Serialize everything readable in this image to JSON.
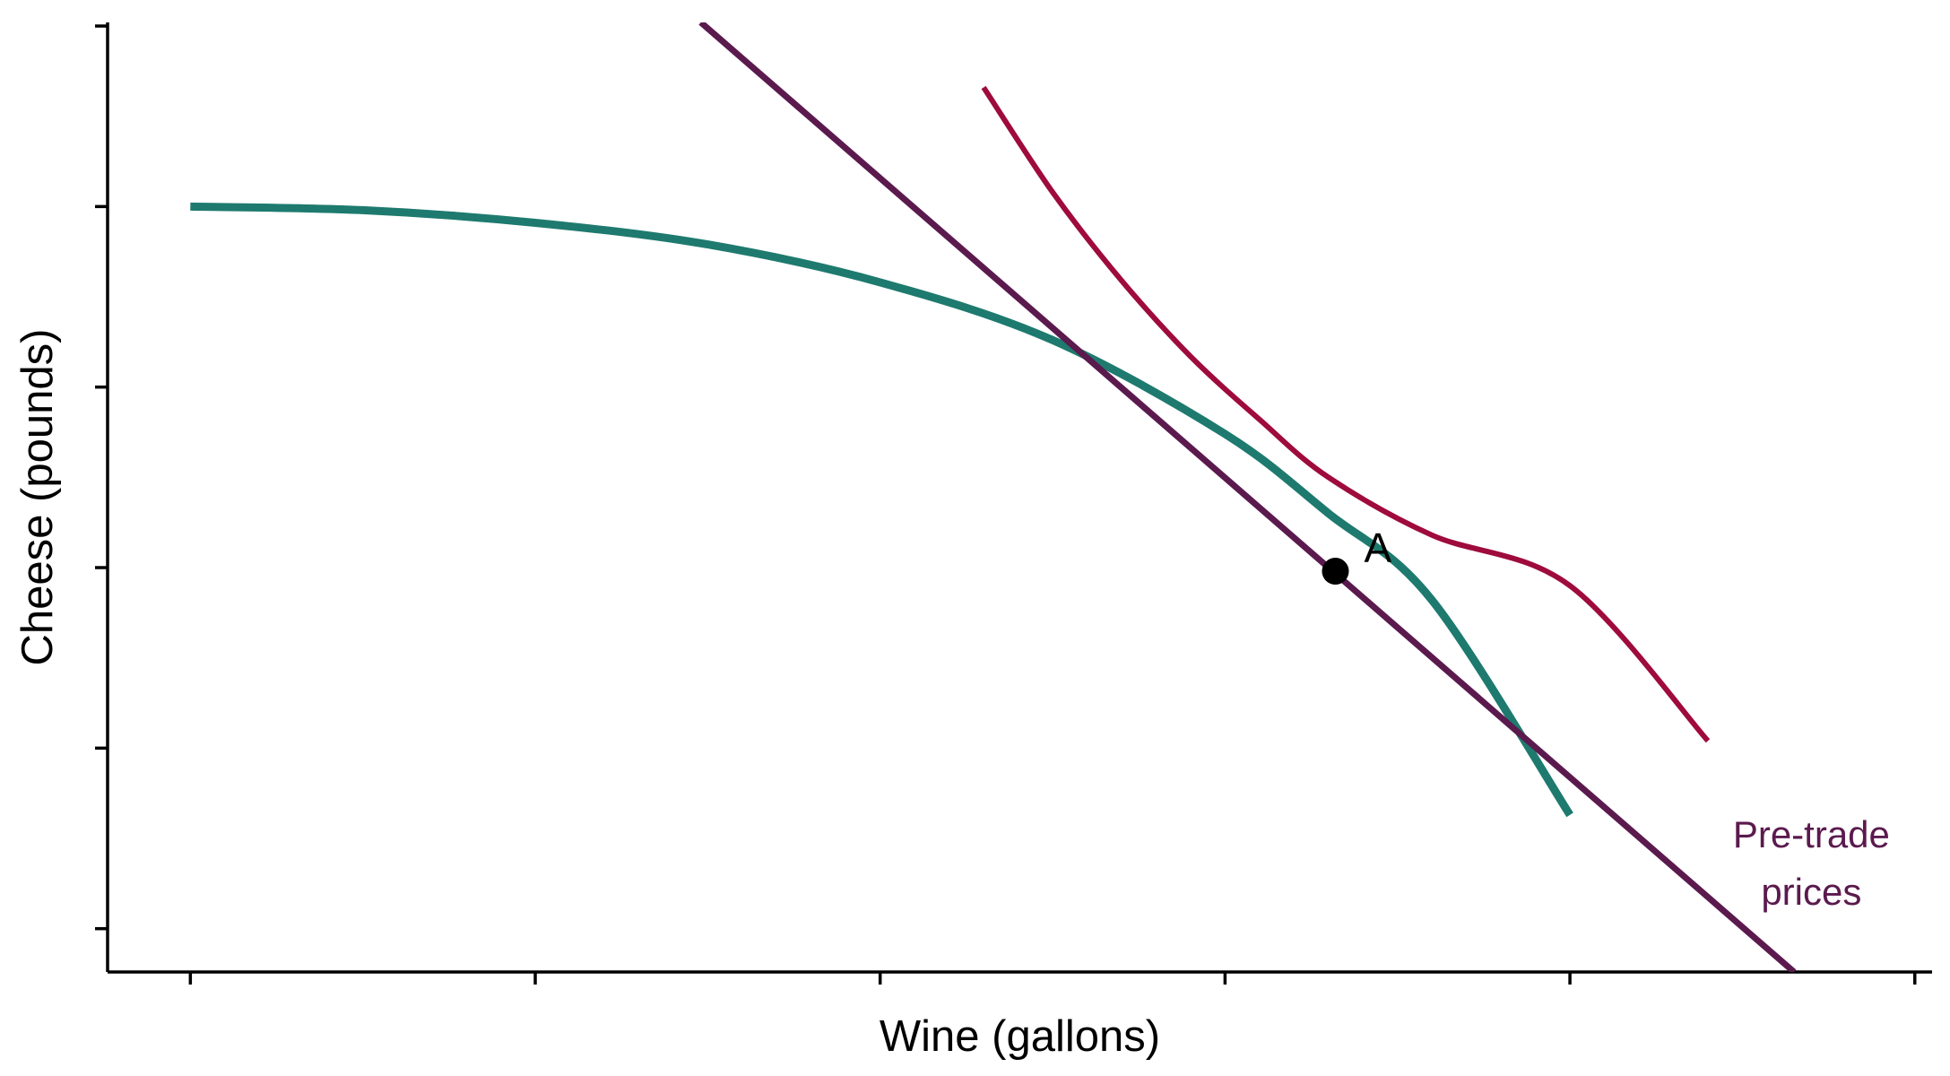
{
  "chart_data": {
    "type": "line",
    "title": "",
    "xlabel": "Wine (gallons)",
    "ylabel": "Cheese (pounds)",
    "xlim": [
      -0.24,
      5.05
    ],
    "ylim": [
      -0.24,
      5.02
    ],
    "x_ticks": [
      0,
      1,
      2,
      3,
      4,
      5
    ],
    "y_ticks": [
      0,
      1,
      2,
      3,
      4,
      5
    ],
    "tick_labels_shown": false,
    "grid": false,
    "legend": "none",
    "series": [
      {
        "role": "production-possibilities-frontier",
        "color": "#1E7A6E",
        "x": [
          0,
          0.5,
          1,
          1.5,
          2,
          2.5,
          3,
          3.3,
          3.6,
          4
        ],
        "y": [
          4,
          3.98,
          3.91,
          3.79,
          3.58,
          3.26,
          2.74,
          2.3,
          1.82,
          0.63
        ]
      },
      {
        "role": "indifference-curve",
        "color": "#9E0B3C",
        "x": [
          2.3,
          2.5,
          2.7,
          2.9,
          3.1,
          3.3,
          3.6,
          4,
          4.4
        ],
        "y": [
          4.66,
          4.08,
          3.59,
          3.17,
          2.82,
          2.5,
          2.18,
          1.9,
          1.04
        ]
      },
      {
        "role": "price-line",
        "color": "#5B1A4E",
        "x": [
          1.48,
          4.65
        ],
        "y": [
          5.02,
          -0.24
        ]
      }
    ],
    "points": [
      {
        "label": "A",
        "x": 3.32,
        "y": 1.98
      }
    ],
    "annotations": [
      {
        "text": "Pre-trade\nprices",
        "lines": [
          "Pre-trade",
          "prices"
        ],
        "color": "#5B1A4E",
        "x": 4.7,
        "y": 0.45
      }
    ]
  }
}
